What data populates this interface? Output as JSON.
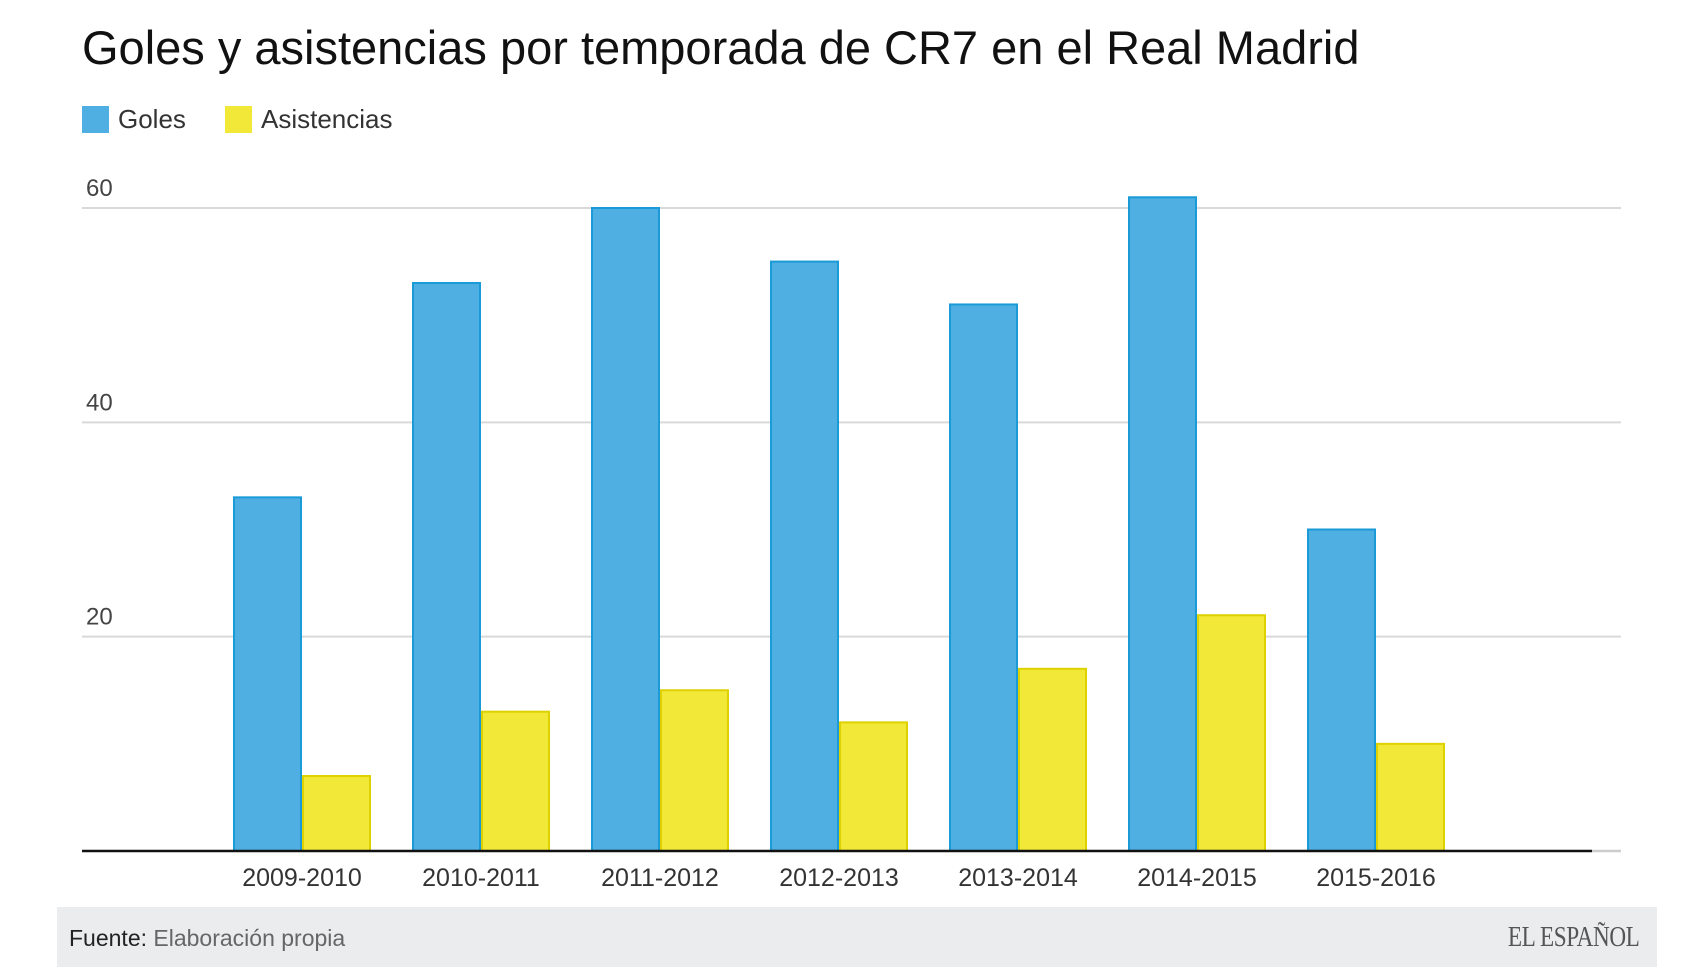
{
  "chart_data": {
    "type": "bar",
    "title": "Goles y asistencias por temporada de CR7 en el Real Madrid",
    "categories": [
      "2009-2010",
      "2010-2011",
      "2011-2012",
      "2012-2013",
      "2013-2014",
      "2014-2015",
      "2015-2016"
    ],
    "series": [
      {
        "name": "Goles",
        "color": "#4FAFE3",
        "values": [
          33,
          53,
          60,
          55,
          51,
          61,
          30
        ]
      },
      {
        "name": "Asistencias",
        "color": "#F2E838",
        "values": [
          7,
          13,
          15,
          12,
          17,
          22,
          10
        ]
      }
    ],
    "yticks": [
      20,
      40,
      60
    ],
    "ylim": [
      0,
      60
    ],
    "xlabel": "",
    "ylabel": "",
    "grid": true,
    "legend": "top-left"
  },
  "footer": {
    "source_label": "Fuente:",
    "source_value": "Elaboración propia",
    "brand": "EL ESPAÑOL"
  }
}
